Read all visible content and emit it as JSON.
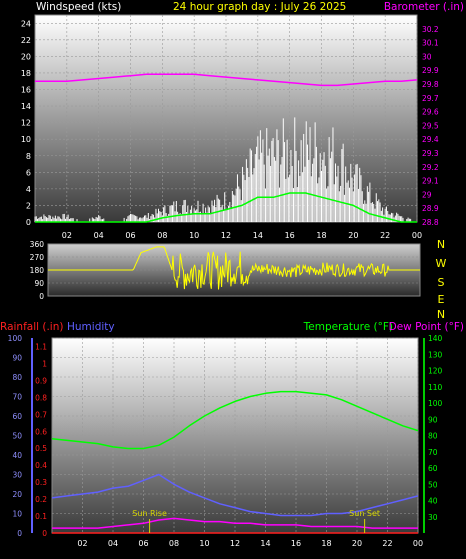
{
  "title": "24 hour graph day : July 26 2025",
  "colors": {
    "wind": "#ffffff",
    "gust": "#ffffff",
    "wind_avg": "#00ff00",
    "barometer": "#ff00ff",
    "direction": "#ffff00",
    "temperature": "#00ff00",
    "dewpoint": "#ff00ff",
    "humidity": "#6060ff",
    "rain": "#ff2020",
    "sun": "#d8d800"
  },
  "x_tick_labels": [
    "02",
    "04",
    "06",
    "08",
    "10",
    "12",
    "14",
    "16",
    "18",
    "20",
    "22",
    "00"
  ],
  "chart_data": [
    {
      "type": "line",
      "id": "wind-barometer",
      "left_label": "Windspeed (kts)",
      "right_label": "Barometer (.in)",
      "ylim_left": [
        0,
        25
      ],
      "y_ticks_left": [
        0,
        2,
        4,
        6,
        8,
        10,
        12,
        14,
        16,
        18,
        20,
        22,
        24
      ],
      "ylim_right": [
        28.8,
        30.3
      ],
      "y_ticks_right": [
        28.8,
        28.9,
        29,
        29.1,
        29.2,
        29.3,
        29.4,
        29.5,
        29.6,
        29.7,
        29.8,
        29.9,
        30,
        30.1,
        30.2
      ],
      "x_range_hours": [
        0,
        24
      ],
      "series": [
        {
          "key": "gust",
          "x": [
            0,
            1,
            2,
            3,
            4,
            5,
            6,
            7,
            8,
            9,
            10,
            11,
            12,
            13,
            14,
            15,
            16,
            17,
            18,
            19,
            20,
            21,
            22,
            23,
            24
          ],
          "values": [
            1,
            1,
            1,
            0,
            1,
            0,
            1,
            1,
            2,
            3,
            3,
            3,
            4,
            7,
            11,
            12,
            13,
            13,
            13,
            12,
            8,
            5,
            2,
            1,
            0
          ]
        },
        {
          "key": "wind_avg",
          "x": [
            0,
            1,
            2,
            3,
            4,
            5,
            6,
            7,
            8,
            9,
            10,
            11,
            12,
            13,
            14,
            15,
            16,
            17,
            18,
            19,
            20,
            21,
            22,
            23,
            24
          ],
          "values": [
            0,
            0,
            0,
            0,
            0,
            0,
            0,
            0,
            0.5,
            0.8,
            1,
            1,
            1.5,
            2,
            3,
            3,
            3.5,
            3.5,
            3,
            2.5,
            2,
            1,
            0.5,
            0,
            0
          ]
        },
        {
          "key": "barometer",
          "x": [
            0,
            1,
            2,
            3,
            4,
            5,
            6,
            7,
            8,
            9,
            10,
            11,
            12,
            13,
            14,
            15,
            16,
            17,
            18,
            19,
            20,
            21,
            22,
            23,
            24
          ],
          "values": [
            29.82,
            29.82,
            29.82,
            29.83,
            29.84,
            29.85,
            29.86,
            29.87,
            29.87,
            29.87,
            29.87,
            29.86,
            29.85,
            29.84,
            29.83,
            29.82,
            29.81,
            29.8,
            29.79,
            29.79,
            29.8,
            29.81,
            29.82,
            29.82,
            29.83
          ]
        }
      ]
    },
    {
      "type": "line",
      "id": "wind-direction",
      "ylim": [
        0,
        360
      ],
      "y_ticks": [
        0,
        90,
        180,
        270,
        360
      ],
      "compass_labels": [
        "N",
        "W",
        "S",
        "E",
        "N"
      ],
      "x_range_hours": [
        0,
        24
      ],
      "series": [
        {
          "key": "direction",
          "x": [
            0,
            1,
            2,
            3,
            4,
            5,
            5.5,
            6,
            7,
            7.5,
            8,
            9,
            10,
            11,
            12,
            13,
            14,
            15,
            16,
            17,
            18,
            19,
            20,
            21,
            22,
            23,
            24
          ],
          "values": [
            180,
            180,
            180,
            180,
            180,
            180,
            180,
            300,
            340,
            340,
            180,
            160,
            190,
            170,
            200,
            180,
            190,
            180,
            170,
            180,
            190,
            180,
            185,
            180,
            180,
            180,
            180
          ]
        }
      ]
    },
    {
      "type": "line",
      "id": "temp-humidity-rain",
      "labels": {
        "rain": "Rainfall (.in)",
        "humidity": "Humidity",
        "temperature": "Temperature (°F)",
        "dewpoint": "Dew Point (°F)"
      },
      "ylim_humidity": [
        0,
        100
      ],
      "y_ticks_humidity": [
        0,
        10,
        20,
        30,
        40,
        50,
        60,
        70,
        80,
        90,
        100
      ],
      "ylim_rain": [
        0,
        1.15
      ],
      "y_ticks_rain": [
        0,
        0.1,
        0.2,
        0.3,
        0.4,
        0.5,
        0.6,
        0.7,
        0.8,
        0.9,
        1,
        1.1
      ],
      "ylim_temp": [
        20,
        140
      ],
      "y_ticks_temp": [
        30,
        40,
        50,
        60,
        70,
        80,
        90,
        100,
        110,
        120,
        130,
        140
      ],
      "x_range_hours": [
        0,
        24
      ],
      "annotations": [
        {
          "label": "Sun Rise",
          "hour": 6.4
        },
        {
          "label": "Sun Set",
          "hour": 20.5
        }
      ],
      "series": [
        {
          "key": "temperature",
          "x": [
            0,
            1,
            2,
            3,
            4,
            5,
            6,
            7,
            8,
            9,
            10,
            11,
            12,
            13,
            14,
            15,
            16,
            17,
            18,
            19,
            20,
            21,
            22,
            23,
            24
          ],
          "values": [
            78,
            77,
            76,
            75,
            73,
            72,
            72,
            74,
            79,
            86,
            92,
            97,
            101,
            104,
            106,
            107,
            107,
            106,
            105,
            102,
            98,
            94,
            90,
            86,
            83
          ]
        },
        {
          "key": "dewpoint",
          "x": [
            0,
            1,
            2,
            3,
            4,
            5,
            6,
            7,
            8,
            9,
            10,
            11,
            12,
            13,
            14,
            15,
            16,
            17,
            18,
            19,
            20,
            21,
            22,
            23,
            24
          ],
          "values": [
            23,
            23,
            23,
            23,
            24,
            25,
            26,
            28,
            29,
            28,
            27,
            27,
            26,
            26,
            25,
            25,
            25,
            24,
            24,
            24,
            24,
            23,
            23,
            23,
            23
          ]
        },
        {
          "key": "humidity",
          "x": [
            0,
            1,
            2,
            3,
            4,
            5,
            6,
            7,
            8,
            9,
            10,
            11,
            12,
            13,
            14,
            15,
            16,
            17,
            18,
            19,
            20,
            21,
            22,
            23,
            24
          ],
          "values": [
            18,
            19,
            20,
            21,
            23,
            24,
            27,
            30,
            25,
            21,
            18,
            15,
            13,
            11,
            10,
            9,
            9,
            9,
            10,
            10,
            11,
            13,
            15,
            17,
            19
          ]
        },
        {
          "key": "rain",
          "x": [
            0,
            24
          ],
          "values": [
            0,
            0
          ]
        }
      ]
    }
  ]
}
